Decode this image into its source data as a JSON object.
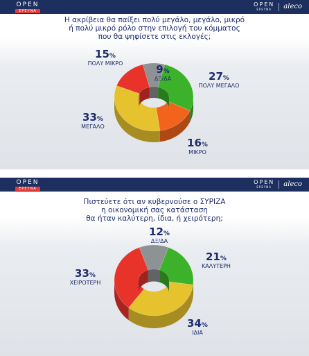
{
  "panels": [
    {
      "open_word": "OPEN",
      "open_sub": "ΕΡΕΥΝΑ",
      "right_open_word": "OPEN",
      "right_open_sub": "ΕΡΕΥΝΑ",
      "aleco": "aleco",
      "question_lines": [
        "Η ακρίβεια θα παίξει πολύ μεγάλο, μεγάλο, μικρό",
        "ή πολύ μικρό ρόλο στην επιλογή του κόμματος",
        "που θα ψηφίσετε στις εκλογές;"
      ]
    },
    {
      "open_word": "OPEN",
      "open_sub": "ΕΡΕΥΝΑ",
      "right_open_word": "OPEN",
      "right_open_sub": "ΕΡΕΥΝΑ",
      "aleco": "aleco",
      "question_lines": [
        "Πιστεύετε ότι αν κυβερνούσε ο ΣΥΡΙΖΑ",
        "η οικονομική σας κατάσταση",
        "θα ήταν καλύτερη, ίδια, ή χειρότερη;"
      ]
    }
  ],
  "chart_data": [
    {
      "type": "pie",
      "title": "Η ακρίβεια θα παίξει πολύ μεγάλο, μεγάλο, μικρό ή πολύ μικρό ρόλο στην επιλογή του κόμματος που θα ψηφίσετε στις εκλογές;",
      "unit": "%",
      "slices": [
        {
          "label": "ΔΞ/ΔΑ",
          "value": 9,
          "color": "#8f9294"
        },
        {
          "label": "ΠΟΛΥ ΜΕΓΑΛΟ",
          "value": 27,
          "color": "#3cb22a"
        },
        {
          "label": "ΜΙΚΡΟ",
          "value": 16,
          "color": "#f2641c"
        },
        {
          "label": "ΜΕΓΑΛΟ",
          "value": 33,
          "color": "#e6c22e"
        },
        {
          "label": "ΠΟΛΥ ΜΙΚΡΟ",
          "value": 15,
          "color": "#e8332a"
        }
      ]
    },
    {
      "type": "pie",
      "title": "Πιστεύετε ότι αν κυβερνούσε ο ΣΥΡΙΖΑ η οικονομική σας κατάσταση θα ήταν καλύτερη, ίδια, ή χειρότερη;",
      "unit": "%",
      "slices": [
        {
          "label": "ΔΞ/ΔΑ",
          "value": 12,
          "color": "#8f9294"
        },
        {
          "label": "ΚΑΛΥΤΕΡΗ",
          "value": 21,
          "color": "#3cb22a"
        },
        {
          "label": "ΙΔΙΑ",
          "value": 34,
          "color": "#e6c22e"
        },
        {
          "label": "ΧΕΙΡΟΤΕΡΗ",
          "value": 33,
          "color": "#e8332a"
        }
      ]
    }
  ]
}
